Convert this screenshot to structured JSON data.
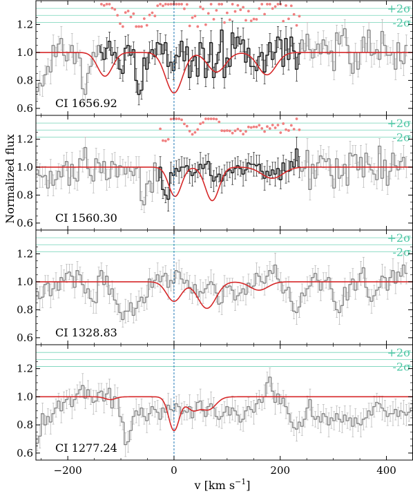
{
  "chart_data": {
    "type": "line",
    "xlabel": "v [km s",
    "xlabel_sup": "−1",
    "xlabel_close": "]",
    "ylabel": "Normalized flux",
    "xlim": [
      -260,
      450
    ],
    "ylim": [
      0.55,
      1.37
    ],
    "x_ticks": [
      -200,
      0,
      200,
      400
    ],
    "x_tick_labels": [
      "−200",
      "0",
      "200",
      "400"
    ],
    "y_ticks": [
      0.6,
      0.8,
      1.0,
      1.2
    ],
    "y_tick_labels": [
      "0.6",
      "0.8",
      "1.0",
      "1.2"
    ],
    "sigma_labels": {
      "plus": "+2σ",
      "minus": "-2σ"
    },
    "sigma_levels": {
      "upper": 1.315,
      "mid": 1.265,
      "lower": 1.215
    },
    "reference_velocity": 0,
    "colors": {
      "model": "#d62728",
      "data": "#7f7f7f",
      "fit_region": "#111111",
      "residual": "#f08080",
      "sigma": "#4ec7a5",
      "reference": "#1f77b4"
    },
    "panels": [
      {
        "label": "CI 1656.92",
        "fit_range": [
          -140,
          240
        ],
        "components": [
          {
            "v": -130,
            "depth": 0.17,
            "sigma": 14
          },
          {
            "v": 0,
            "depth": 0.29,
            "sigma": 16
          },
          {
            "v": 80,
            "depth": 0.14,
            "sigma": 17
          },
          {
            "v": 175,
            "depth": 0.16,
            "sigma": 17
          }
        ],
        "flux": [
          0.72,
          0.78,
          0.76,
          0.84,
          0.9,
          0.86,
          1.05,
          0.97,
          1.06,
          1.1,
          0.98,
          0.94,
          1.0,
          1.05,
          0.92,
          1.0,
          0.96,
          0.74,
          0.7,
          0.85,
          0.9,
          1.0,
          0.97,
          1.05,
          1.0,
          0.95,
          1.03,
          1.08,
          0.98,
          1.0,
          0.96,
          0.88,
          0.85,
          1.03,
          1.05,
          0.98,
          1.02,
          0.8,
          0.7,
          0.73,
          0.96,
          0.88,
          1.0,
          1.02,
          0.97,
          1.07,
          1.06,
          0.99,
          1.07,
          0.9,
          0.93,
          0.87,
          0.98,
          0.97,
          1.08,
          0.94,
          1.04,
          0.82,
          0.94,
          0.97,
          0.83,
          1.07,
          1.03,
          0.82,
          0.93,
          1.07,
          0.82,
          0.92,
          1.0,
          1.16,
          0.82,
          0.96,
          0.9,
          1.14,
          1.03,
          1.11,
          1.06,
          1.09,
          0.93,
          1.03,
          0.9,
          0.9,
          0.87,
          0.97,
          1.0,
          0.86,
          0.98,
          1.07,
          0.95,
          1.0,
          1.11,
          1.09,
          0.9,
          1.1,
          0.95,
          1.11,
          1.01,
          0.88,
          0.99,
          1.09,
          1.01,
          1.13,
          1.02,
          0.96,
          1.02,
          1.06,
          0.99,
          1.09,
          1.05,
          0.99,
          1.01,
          0.87,
          1.14,
          1.06,
          1.12,
          1.17,
          1.05,
          0.92,
          0.85,
          1.0,
          0.88,
          1.0,
          1.11,
          1.0,
          1.16,
          0.98,
          0.99,
          1.02,
          0.95,
          1.15,
          1.05,
          0.98,
          0.98,
          1.0,
          0.88,
          1.07,
          0.94,
          0.92,
          1.05
        ]
      },
      {
        "label": "CI 1560.30",
        "fit_range": [
          -30,
          240
        ],
        "components": [
          {
            "v": 2,
            "depth": 0.21,
            "sigma": 12
          },
          {
            "v": 72,
            "depth": 0.24,
            "sigma": 13
          },
          {
            "v": 185,
            "depth": 0.08,
            "sigma": 20
          }
        ],
        "flux": [
          0.98,
          0.94,
          0.93,
          0.94,
          0.85,
          0.97,
          0.87,
          0.91,
          0.97,
          0.93,
          1.01,
          1.04,
          0.87,
          1.02,
          0.92,
          0.9,
          1.06,
          1.05,
          1.14,
          0.99,
          0.94,
          0.9,
          1.06,
          1.03,
          0.96,
          1.04,
          0.91,
          0.92,
          1.04,
          1.02,
          0.93,
          1.01,
          1.0,
          0.95,
          1.0,
          0.97,
          0.94,
          0.99,
          1.0,
          0.76,
          0.73,
          0.88,
          0.9,
          0.82,
          1.03,
          0.9,
          1.0,
          0.84,
          0.8,
          0.77,
          0.96,
          0.94,
          0.99,
          0.97,
          1.0,
          1.0,
          1.01,
          0.97,
          0.94,
          0.96,
          0.98,
          1.02,
          0.99,
          1.02,
          1.04,
          0.94,
          0.9,
          0.93,
          0.95,
          0.9,
          0.94,
          0.97,
          0.98,
          0.96,
          0.99,
          1.01,
          0.99,
          0.95,
          0.98,
          1.03,
          1.02,
          1.02,
          1.01,
          1.02,
          0.97,
          0.92,
          0.97,
          0.94,
          0.98,
          0.95,
          0.99,
          0.91,
          1.03,
          0.97,
          0.97,
          1.04,
          1.0,
          1.13,
          1.0,
          0.97,
          0.99,
          1.12,
          0.84,
          1.02,
          0.92,
          1.03,
          1.08,
          1.06,
          1.04,
          1.06,
          0.94,
          0.85,
          1.06,
          0.92,
          0.94,
          1.02,
          0.87,
          1.1,
          1.08,
          1.09,
          0.98,
          1.07,
          0.93,
          1.1,
          1.02,
          0.98,
          0.95,
          0.91,
          1.15,
          0.92,
          1.05,
          0.87,
          0.97,
          1.1,
          1.01,
          0.98,
          1.04,
          1.07,
          1.0
        ]
      },
      {
        "label": "CI 1328.83",
        "fit_range": null,
        "components": [
          {
            "v": 0,
            "depth": 0.14,
            "sigma": 14
          },
          {
            "v": 62,
            "depth": 0.19,
            "sigma": 17
          },
          {
            "v": 160,
            "depth": 0.06,
            "sigma": 17
          }
        ],
        "flux": [
          0.93,
          0.88,
          0.89,
          0.98,
          0.99,
          0.9,
          0.95,
          1.0,
          0.94,
          1.03,
          1.01,
          1.06,
          1.07,
          1.04,
          0.96,
          1.08,
          1.05,
          0.98,
          0.92,
          0.95,
          0.88,
          0.86,
          0.85,
          1.04,
          1.08,
          0.98,
          1.04,
          0.91,
          0.95,
          0.87,
          0.84,
          0.78,
          0.73,
          0.79,
          0.79,
          0.85,
          0.76,
          0.81,
          0.86,
          0.89,
          0.85,
          0.89,
          1.02,
          0.96,
          1.01,
          1.05,
          1.0,
          1.04,
          1.06,
          0.96,
          1.01,
          0.99,
          1.08,
          1.07,
          1.02,
          0.99,
          1.01,
          0.96,
          0.92,
          0.98,
          0.89,
          0.93,
          0.92,
          0.95,
          0.98,
          1.0,
          0.98,
          0.92,
          0.84,
          0.85,
          0.97,
          0.96,
          0.97,
          0.94,
          0.87,
          0.9,
          0.92,
          0.95,
          0.91,
          0.99,
          0.96,
          0.97,
          1.06,
          1.04,
          1.0,
          0.99,
          1.04,
          1.08,
          1.06,
          1.12,
          1.02,
          1.0,
          0.92,
          0.94,
          0.96,
          0.86,
          0.79,
          0.78,
          0.82,
          0.92,
          0.9,
          0.95,
          0.97,
          1.03,
          1.06,
          1.01,
          0.94,
          1.0,
          1.01,
          1.03,
          0.95,
          0.86,
          0.8,
          0.78,
          0.83,
          0.96,
          0.87,
          0.98,
          1.02,
          0.94,
          1.0,
          1.06,
          1.1,
          0.96,
          0.89,
          0.86,
          0.9,
          0.94,
          0.96,
          1.04,
          1.03,
          0.94,
          1.03,
          1.08,
          0.99,
          1.07,
          1.04,
          1.12,
          1.06
        ]
      },
      {
        "label": "CI 1277.24",
        "fit_range": null,
        "components": [
          {
            "v": -120,
            "depth": 0.02,
            "sigma": 10
          },
          {
            "v": 0,
            "depth": 0.24,
            "sigma": 10
          },
          {
            "v": 35,
            "depth": 0.09,
            "sigma": 12
          },
          {
            "v": 65,
            "depth": 0.09,
            "sigma": 14
          }
        ],
        "flux": [
          0.67,
          0.72,
          0.88,
          0.8,
          0.86,
          0.82,
          0.88,
          0.92,
          0.97,
          0.9,
          0.96,
          0.98,
          1.0,
          0.93,
          0.98,
          1.02,
          1.05,
          1.08,
          0.99,
          1.05,
          1.0,
          0.96,
          0.97,
          1.03,
          1.04,
          0.97,
          1.02,
          1.06,
          0.92,
          1.0,
          0.99,
          0.86,
          0.82,
          0.66,
          0.68,
          0.76,
          0.86,
          0.9,
          0.87,
          0.92,
          0.86,
          0.83,
          0.88,
          0.93,
          0.91,
          0.89,
          0.84,
          0.92,
          0.89,
          0.94,
          0.91,
          0.9,
          0.95,
          0.93,
          0.88,
          0.9,
          0.89,
          0.93,
          0.85,
          0.9,
          0.96,
          0.97,
          0.9,
          0.86,
          0.93,
          0.95,
          0.92,
          0.86,
          0.84,
          0.86,
          0.89,
          0.93,
          0.87,
          0.92,
          0.9,
          0.87,
          0.82,
          0.84,
          0.9,
          0.93,
          0.91,
          0.89,
          0.95,
          0.98,
          0.96,
          1.0,
          1.1,
          1.14,
          1.04,
          0.96,
          1.02,
          0.95,
          0.99,
          0.93,
          0.88,
          0.82,
          0.78,
          0.77,
          0.82,
          0.79,
          0.84,
          0.92,
          0.98,
          0.86,
          0.84,
          0.86,
          0.82,
          0.88,
          0.86,
          0.8,
          0.85,
          0.83,
          0.88,
          0.84,
          0.82,
          0.87,
          0.83,
          0.85,
          0.79,
          0.85,
          0.81,
          0.8,
          0.84,
          0.85,
          0.9,
          0.87,
          0.93,
          0.96,
          0.95,
          0.92,
          0.9,
          0.86,
          0.88,
          0.88,
          0.91,
          0.86,
          0.9,
          0.89,
          0.87,
          0.89,
          0.92,
          0.91
        ]
      }
    ]
  }
}
